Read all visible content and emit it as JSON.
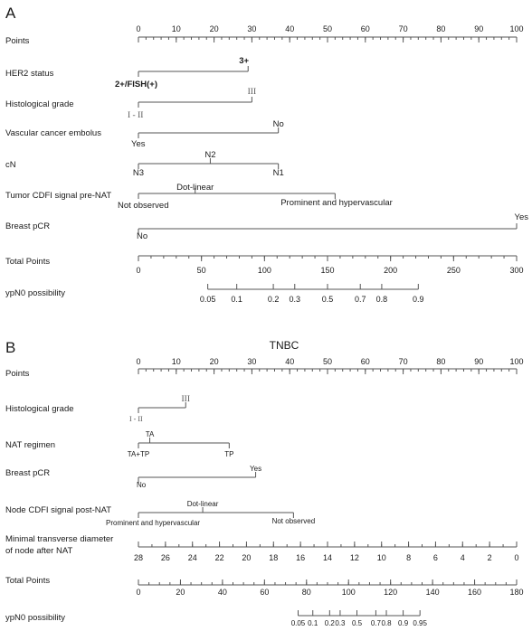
{
  "chart_data": [
    {
      "type": "nomogram",
      "panel": "A",
      "title": "",
      "rows": [
        {
          "name": "Points",
          "kind": "axis",
          "min": 0,
          "max": 100,
          "major": [
            0,
            10,
            20,
            30,
            40,
            50,
            60,
            70,
            80,
            90,
            100
          ],
          "labels": [
            "0",
            "10",
            "20",
            "30",
            "40",
            "50",
            "60",
            "70",
            "80",
            "90",
            "100"
          ],
          "minor_step": 2
        },
        {
          "name": "HER2 status",
          "kind": "variable",
          "levels": [
            {
              "label": "2+/FISH(+)",
              "points": 0
            },
            {
              "label": "3+",
              "points": 29
            }
          ]
        },
        {
          "name": "Histological grade",
          "kind": "variable",
          "levels": [
            {
              "label": "I - II",
              "points": 0
            },
            {
              "label": "III",
              "points": 30
            }
          ]
        },
        {
          "name": "Vascular cancer embolus",
          "kind": "variable",
          "levels": [
            {
              "label": "Yes",
              "points": 0
            },
            {
              "label": "No",
              "points": 37
            }
          ]
        },
        {
          "name": "cN",
          "kind": "variable",
          "levels": [
            {
              "label": "N3",
              "points": 0
            },
            {
              "label": "N2",
              "points": 19
            },
            {
              "label": "N1",
              "points": 37
            }
          ]
        },
        {
          "name": "Tumor CDFI signal pre-NAT",
          "kind": "variable",
          "levels": [
            {
              "label": "Not observed",
              "points": 0
            },
            {
              "label": "Dot-linear",
              "points": 15
            },
            {
              "label": "Prominent and hypervascular",
              "points": 52
            }
          ]
        },
        {
          "name": "Breast pCR",
          "kind": "variable",
          "levels": [
            {
              "label": "No",
              "points": 0
            },
            {
              "label": "Yes",
              "points": 100
            }
          ]
        },
        {
          "name": "Total Points",
          "kind": "axis",
          "min": 0,
          "max": 300,
          "major": [
            0,
            50,
            100,
            150,
            200,
            250,
            300
          ],
          "labels": [
            "0",
            "50",
            "100",
            "150",
            "200",
            "250",
            "300"
          ],
          "minor_step": 10
        },
        {
          "name": "ypN0 possibility",
          "kind": "probability",
          "ticks": [
            {
              "label": "0.05",
              "total_points": 55
            },
            {
              "label": "0.1",
              "total_points": 78
            },
            {
              "label": "0.2",
              "total_points": 107
            },
            {
              "label": "0.3",
              "total_points": 124
            },
            {
              "label": "0.5",
              "total_points": 150
            },
            {
              "label": "0.7",
              "total_points": 176
            },
            {
              "label": "0.8",
              "total_points": 193
            },
            {
              "label": "0.9",
              "total_points": 222
            }
          ]
        }
      ]
    },
    {
      "type": "nomogram",
      "panel": "B",
      "title": "TNBC",
      "rows": [
        {
          "name": "Points",
          "kind": "axis",
          "min": 0,
          "max": 100,
          "major": [
            0,
            10,
            20,
            30,
            40,
            50,
            60,
            70,
            80,
            90,
            100
          ],
          "labels": [
            "0",
            "10",
            "20",
            "30",
            "40",
            "50",
            "60",
            "70",
            "80",
            "90",
            "100"
          ],
          "minor_step": 2
        },
        {
          "name": "Histological grade",
          "kind": "variable",
          "levels": [
            {
              "label": "I - II",
              "points": 0
            },
            {
              "label": "III",
              "points": 12.5
            }
          ]
        },
        {
          "name": "NAT regimen",
          "kind": "variable",
          "levels": [
            {
              "label": "TA+TP",
              "points": 0
            },
            {
              "label": "TA",
              "points": 3
            },
            {
              "label": "TP",
              "points": 24
            }
          ]
        },
        {
          "name": "Breast pCR",
          "kind": "variable",
          "levels": [
            {
              "label": "No",
              "points": 0
            },
            {
              "label": "Yes",
              "points": 31
            }
          ]
        },
        {
          "name": "Node CDFI signal post-NAT",
          "kind": "variable",
          "levels": [
            {
              "label": "Prominent and hypervascular",
              "points": 0
            },
            {
              "label": "Dot-linear",
              "points": 17
            },
            {
              "label": "Not observed",
              "points": 41
            }
          ]
        },
        {
          "name": "Minimal transverse diameter of node after NAT",
          "kind": "axis_reversed",
          "min": 0,
          "max": 28,
          "major": [
            28,
            26,
            24,
            22,
            20,
            18,
            16,
            14,
            12,
            10,
            8,
            6,
            4,
            2,
            0
          ],
          "labels": [
            "28",
            "26",
            "24",
            "22",
            "20",
            "18",
            "16",
            "14",
            "12",
            "10",
            "8",
            "6",
            "4",
            "2",
            "0"
          ],
          "minor_step": 1
        },
        {
          "name": "Total Points",
          "kind": "axis",
          "min": 0,
          "max": 180,
          "major": [
            0,
            20,
            40,
            60,
            80,
            100,
            120,
            140,
            160,
            180
          ],
          "labels": [
            "0",
            "20",
            "40",
            "60",
            "80",
            "100",
            "120",
            "140",
            "160",
            "180"
          ],
          "minor_step": 5
        },
        {
          "name": "ypN0 possibility",
          "kind": "probability",
          "ticks": [
            {
              "label": "0.05",
              "total_points": 76
            },
            {
              "label": "0.1",
              "total_points": 83
            },
            {
              "label": "0.2",
              "total_points": 91
            },
            {
              "label": "0.3",
              "total_points": 96
            },
            {
              "label": "0.5",
              "total_points": 104
            },
            {
              "label": "0.7",
              "total_points": 113
            },
            {
              "label": "0.8",
              "total_points": 118
            },
            {
              "label": "0.9",
              "total_points": 126
            },
            {
              "label": "0.95",
              "total_points": 134
            }
          ]
        }
      ]
    }
  ]
}
